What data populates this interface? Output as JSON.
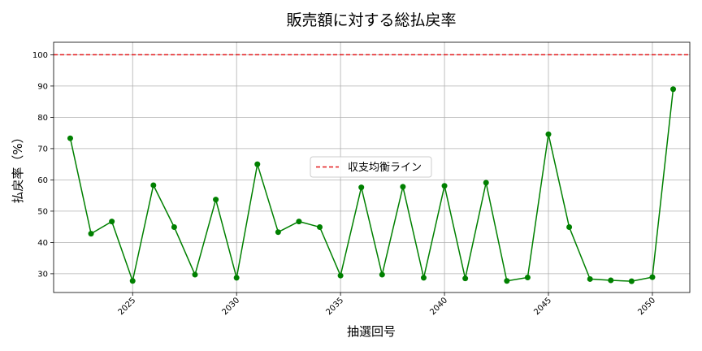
{
  "chart_data": {
    "type": "line",
    "title": "販売額に対する総払戻率",
    "xlabel": "抽選回号",
    "ylabel": "払戻率（%）",
    "xlim": [
      2021.2,
      2051.8
    ],
    "ylim": [
      24,
      104
    ],
    "xticks": [
      2025,
      2030,
      2035,
      2040,
      2045,
      2050
    ],
    "yticks": [
      30,
      40,
      50,
      60,
      70,
      80,
      90,
      100
    ],
    "grid": true,
    "legend": {
      "placement": "center",
      "entries": [
        "収支均衡ライン"
      ]
    },
    "colors": {
      "series": "#008000",
      "reference": "#e31a1c"
    },
    "reference_line": {
      "y": 100,
      "name": "収支均衡ライン",
      "style": "dashed"
    },
    "series": [
      {
        "x": [
          2022,
          2023,
          2024,
          2025,
          2026,
          2027,
          2028,
          2029,
          2030,
          2031,
          2032,
          2033,
          2034,
          2035,
          2036,
          2037,
          2038,
          2039,
          2040,
          2041,
          2042,
          2043,
          2044,
          2045,
          2046,
          2047,
          2048,
          2049,
          2050,
          2051
        ],
        "values": [
          73.3,
          42.8,
          46.7,
          27.7,
          58.3,
          44.9,
          29.7,
          53.7,
          28.7,
          65.0,
          43.3,
          46.7,
          44.9,
          29.4,
          57.6,
          29.7,
          57.8,
          28.7,
          58.1,
          28.5,
          59.1,
          27.7,
          28.8,
          74.6,
          44.9,
          28.3,
          27.9,
          27.6,
          28.9,
          89.0
        ]
      }
    ]
  }
}
